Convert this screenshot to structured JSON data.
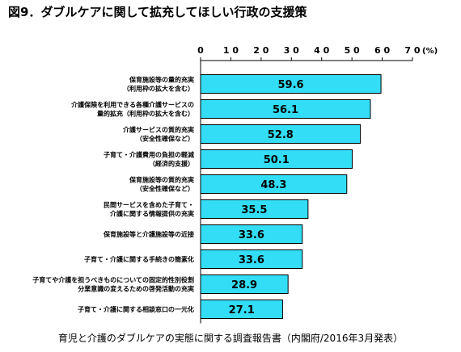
{
  "title": "図9．ダブルケアに関して拡充してほしい行政の支援策",
  "footer": "育児と介護のダブルケアの実態に関する調査報告書（内閣府/2016年3月発表）",
  "colors": {
    "bar_fill": "#33ddf5",
    "bar_stroke": "#000000",
    "axis": "#000000"
  },
  "chart_data": {
    "type": "bar",
    "orientation": "horizontal",
    "unit": "(%)",
    "xlim": [
      0,
      70
    ],
    "ticks": [
      0,
      10,
      20,
      30,
      40,
      50,
      60,
      70
    ],
    "tick_labels": [
      "0",
      "1 0",
      "2 0",
      "3 0",
      "4 0",
      "5 0",
      "6 0",
      "7 0"
    ],
    "grid": false,
    "categories": [
      [
        "保育施設等の量的充実",
        "（利用枠の拡大を含む）"
      ],
      [
        "介護保険を利用できる各種介護サービスの",
        "量的拡充（利用枠の拡大を含む）"
      ],
      [
        "介護サービスの質的充実",
        "（安全性確保など）"
      ],
      [
        "子育て・介護費用の負担の軽減",
        "（経済的支援）"
      ],
      [
        "保育施設等の質的充実",
        "（安全性確保など）"
      ],
      [
        "民間サービスを含めた子育て・",
        "介護に関する情報提供の充実"
      ],
      [
        "保育施設等と介護施設等の近接"
      ],
      [
        "子育て・介護に関する手続きの簡素化"
      ],
      [
        "子育てや介護を担うべきものについての固定的性別役割",
        "分業意識の変えるための啓発活動の充実"
      ],
      [
        "子育て・介護に関する相談窓口の一元化"
      ]
    ],
    "values": [
      59.6,
      56.1,
      52.8,
      50.1,
      48.3,
      35.5,
      33.6,
      33.6,
      28.9,
      27.1
    ],
    "value_labels": [
      "59.6",
      "56.1",
      "52.8",
      "50.1",
      "48.3",
      "35.5",
      "33.6",
      "33.6",
      "28.9",
      "27.1"
    ]
  }
}
